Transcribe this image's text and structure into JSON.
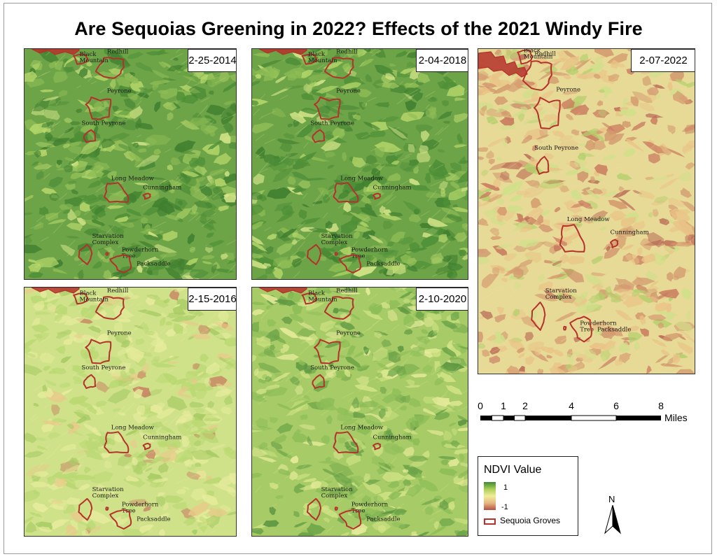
{
  "title": "Are Sequoias Greening in 2022? Effects of the 2021 Windy Fire",
  "colors": {
    "ndvi_high": "#3d8b36",
    "ndvi_mid": "#f0ee94",
    "ndvi_low": "#b6513f",
    "grove_outline": "#b5312c"
  },
  "panels": [
    {
      "id": "p2014",
      "date": "2-25-2014",
      "condition": "green"
    },
    {
      "id": "p2018",
      "date": "2-04-2018",
      "condition": "green"
    },
    {
      "id": "p2022",
      "date": "2-07-2022",
      "condition": "burned"
    },
    {
      "id": "p2016",
      "date": "2-15-2016",
      "condition": "dry"
    },
    {
      "id": "p2020",
      "date": "2-10-2020",
      "condition": "mixed"
    }
  ],
  "groves": {
    "black_mountain": "Black Mountain",
    "redhill": "Redhill",
    "peyrone": "Peyrone",
    "south_peyrone": "South Peyrone",
    "long_meadow": "Long Meadow",
    "cunningham": "Cunningham",
    "starvation_complex": "Starvation Complex",
    "powderhorn_tree": "Powderhorn Tree",
    "packsaddle": "Packsaddle"
  },
  "scale_bar": {
    "ticks": [
      "0",
      "1",
      "2",
      "4",
      "6",
      "8"
    ],
    "unit": "Miles"
  },
  "legend": {
    "title": "NDVI Value",
    "high_label": "1",
    "low_label": "-1",
    "grove_label": "Sequoia Groves"
  },
  "north_arrow": "N"
}
